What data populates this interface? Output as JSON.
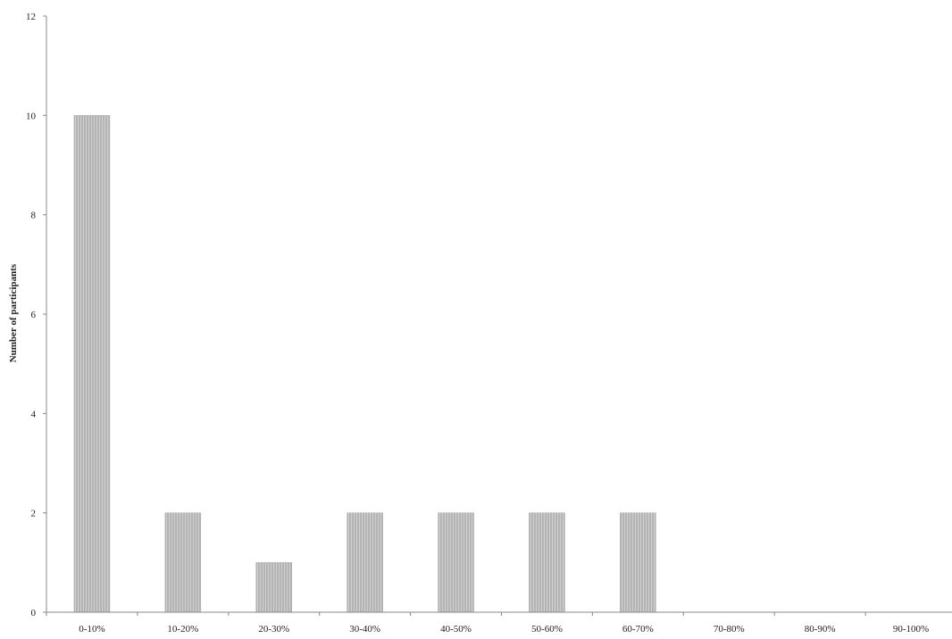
{
  "chart_data": {
    "type": "bar",
    "title": "",
    "xlabel": "",
    "ylabel": "Number of participants",
    "categories": [
      "0-10%",
      "10-20%",
      "20-30%",
      "30-40%",
      "40-50%",
      "50-60%",
      "60-70%",
      "70-80%",
      "80-90%",
      "90-100%"
    ],
    "values": [
      10,
      2,
      1,
      2,
      2,
      2,
      2,
      0,
      0,
      0
    ],
    "ylim": [
      0,
      12
    ],
    "yticks": [
      "0",
      "2",
      "4",
      "6",
      "8",
      "10",
      "12"
    ],
    "grid": false,
    "legend": "none",
    "bar_color": "#b4b4b4",
    "bar_stripe_color": "#d0d0d0",
    "axis_color": "#888888"
  }
}
